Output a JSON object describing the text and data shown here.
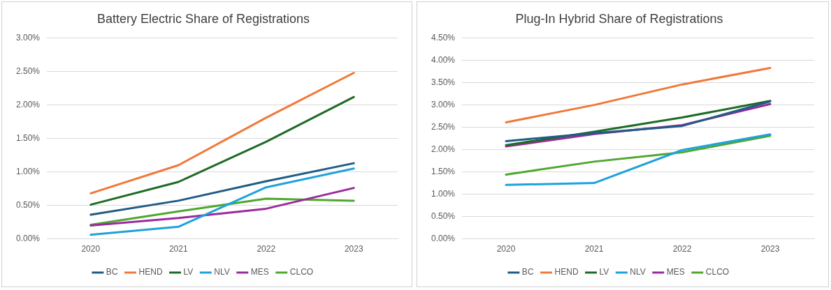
{
  "chart_data": [
    {
      "type": "line",
      "title": "Battery Electric Share of Registrations",
      "categories": [
        "2020",
        "2021",
        "2022",
        "2023"
      ],
      "series": [
        {
          "name": "BC",
          "color": "#1f5c85",
          "values": [
            0.36,
            0.57,
            0.86,
            1.13
          ]
        },
        {
          "name": "HEND",
          "color": "#f07838",
          "values": [
            0.68,
            1.1,
            1.81,
            2.48
          ]
        },
        {
          "name": "LV",
          "color": "#1e6b23",
          "values": [
            0.51,
            0.85,
            1.45,
            2.12
          ]
        },
        {
          "name": "NLV",
          "color": "#1ea2dc",
          "values": [
            0.06,
            0.18,
            0.77,
            1.05
          ]
        },
        {
          "name": "MES",
          "color": "#9a2a9e",
          "values": [
            0.2,
            0.31,
            0.45,
            0.76
          ]
        },
        {
          "name": "CLCO",
          "color": "#4ea72e",
          "values": [
            0.21,
            0.41,
            0.6,
            0.57
          ]
        }
      ],
      "ylim": [
        0,
        3
      ],
      "yticks": [
        {
          "value": 0,
          "label": "0.00%"
        },
        {
          "value": 0.5,
          "label": "0.50%"
        },
        {
          "value": 1,
          "label": "1.00%"
        },
        {
          "value": 1.5,
          "label": "1.50%"
        },
        {
          "value": 2,
          "label": "2.00%"
        },
        {
          "value": 2.5,
          "label": "2.50%"
        },
        {
          "value": 3,
          "label": "3.00%"
        }
      ],
      "grid": "y",
      "legend": "bottom",
      "marker": "none",
      "line_style": "solid"
    },
    {
      "type": "line",
      "title": "Plug-In Hybrid Share of Registrations",
      "categories": [
        "2020",
        "2021",
        "2022",
        "2023"
      ],
      "series": [
        {
          "name": "BC",
          "color": "#1f5c85",
          "values": [
            2.19,
            2.37,
            2.53,
            3.08
          ]
        },
        {
          "name": "HEND",
          "color": "#f07838",
          "values": [
            2.61,
            3.0,
            3.46,
            3.83
          ]
        },
        {
          "name": "LV",
          "color": "#1e6b23",
          "values": [
            2.1,
            2.4,
            2.72,
            3.09
          ]
        },
        {
          "name": "NLV",
          "color": "#1ea2dc",
          "values": [
            1.21,
            1.25,
            1.99,
            2.34
          ]
        },
        {
          "name": "MES",
          "color": "#9a2a9e",
          "values": [
            2.07,
            2.35,
            2.55,
            3.02
          ]
        },
        {
          "name": "CLCO",
          "color": "#4ea72e",
          "values": [
            1.44,
            1.73,
            1.94,
            2.31
          ]
        }
      ],
      "ylim": [
        0,
        4.5
      ],
      "yticks": [
        {
          "value": 0,
          "label": "0.00%"
        },
        {
          "value": 0.5,
          "label": "0.50%"
        },
        {
          "value": 1,
          "label": "1.00%"
        },
        {
          "value": 1.5,
          "label": "1.50%"
        },
        {
          "value": 2,
          "label": "2.00%"
        },
        {
          "value": 2.5,
          "label": "2.50%"
        },
        {
          "value": 3,
          "label": "3.00%"
        },
        {
          "value": 3.5,
          "label": "3.50%"
        },
        {
          "value": 4,
          "label": "4.00%"
        },
        {
          "value": 4.5,
          "label": "4.50%"
        }
      ],
      "grid": "y",
      "legend": "bottom",
      "marker": "none",
      "line_style": "solid"
    }
  ]
}
